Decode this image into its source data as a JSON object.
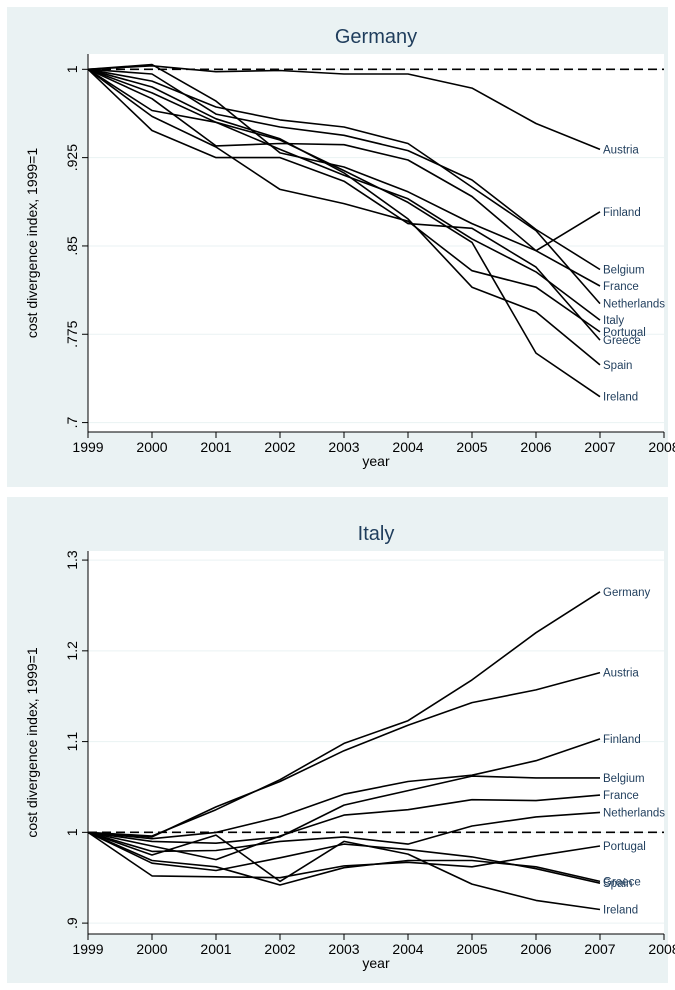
{
  "chart_data": [
    {
      "type": "line",
      "title": "Germany",
      "xlabel": "year",
      "ylabel": "cost divergence index, 1999=1",
      "x": [
        1999,
        2000,
        2001,
        2002,
        2003,
        2004,
        2005,
        2006,
        2007
      ],
      "xticks": [
        1999,
        2000,
        2001,
        2002,
        2003,
        2004,
        2005,
        2006,
        2007,
        2008
      ],
      "xlim": [
        1999,
        2008
      ],
      "yticks": [
        1,
        0.925,
        0.85,
        0.775,
        0.7
      ],
      "ytick_labels": [
        "1",
        ".925",
        ".85",
        ".775",
        ".7"
      ],
      "ylim": [
        0.692,
        1.013
      ],
      "reference_line": 1,
      "grid": true,
      "series": [
        {
          "name": "Austria",
          "values": [
            1,
            1.003,
            0.998,
            0.999,
            0.996,
            0.996,
            0.984,
            0.954,
            0.932
          ]
        },
        {
          "name": "Finland",
          "values": [
            1,
            1.004,
            0.973,
            0.929,
            0.917,
            0.896,
            0.869,
            0.846,
            0.879
          ]
        },
        {
          "name": "Belgium",
          "values": [
            1,
            0.996,
            0.962,
            0.951,
            0.944,
            0.931,
            0.906,
            0.864,
            0.83
          ]
        },
        {
          "name": "France",
          "values": [
            1,
            0.975,
            0.935,
            0.937,
            0.936,
            0.923,
            0.892,
            0.846,
            0.816
          ]
        },
        {
          "name": "Netherlands",
          "values": [
            1,
            0.99,
            0.968,
            0.957,
            0.951,
            0.937,
            0.9,
            0.863,
            0.801
          ]
        },
        {
          "name": "Italy",
          "values": [
            1,
            0.965,
            0.955,
            0.932,
            0.91,
            0.89,
            0.856,
            0.828,
            0.787
          ]
        },
        {
          "name": "Portugal",
          "values": [
            1,
            0.96,
            0.934,
            0.898,
            0.886,
            0.871,
            0.829,
            0.815,
            0.777
          ]
        },
        {
          "name": "Greece",
          "values": [
            1,
            0.948,
            0.925,
            0.925,
            0.905,
            0.869,
            0.865,
            0.832,
            0.77
          ]
        },
        {
          "name": "Spain",
          "values": [
            1,
            0.985,
            0.958,
            0.941,
            0.912,
            0.873,
            0.815,
            0.794,
            0.749
          ]
        },
        {
          "name": "Ireland",
          "values": [
            1,
            0.98,
            0.955,
            0.94,
            0.914,
            0.887,
            0.853,
            0.759,
            0.722
          ]
        }
      ]
    },
    {
      "type": "line",
      "title": "Italy",
      "xlabel": "year",
      "ylabel": "cost divergence index, 1999=1",
      "x": [
        1999,
        2000,
        2001,
        2002,
        2003,
        2004,
        2005,
        2006,
        2007
      ],
      "xticks": [
        1999,
        2000,
        2001,
        2002,
        2003,
        2004,
        2005,
        2006,
        2007,
        2008
      ],
      "xlim": [
        1999,
        2008
      ],
      "yticks": [
        0.9,
        1,
        1.1,
        1.2,
        1.3
      ],
      "ytick_labels": [
        ".9",
        "1",
        "1.1",
        "1.2",
        "1.3"
      ],
      "ylim": [
        0.888,
        1.31
      ],
      "reference_line": 1,
      "grid": true,
      "series": [
        {
          "name": "Germany",
          "values": [
            1,
            0.996,
            1.025,
            1.058,
            1.098,
            1.123,
            1.168,
            1.22,
            1.265
          ]
        },
        {
          "name": "Austria",
          "values": [
            1,
            0.995,
            1.028,
            1.056,
            1.09,
            1.118,
            1.143,
            1.157,
            1.176
          ]
        },
        {
          "name": "Finland",
          "values": [
            1,
            0.993,
            1.0,
            1.017,
            1.042,
            1.056,
            1.063,
            1.079,
            1.103
          ]
        },
        {
          "name": "Belgium",
          "values": [
            1,
            0.99,
            0.988,
            0.995,
            1.03,
            1.046,
            1.062,
            1.06,
            1.06
          ]
        },
        {
          "name": "France",
          "values": [
            1,
            0.985,
            0.97,
            0.996,
            1.019,
            1.025,
            1.036,
            1.035,
            1.041
          ]
        },
        {
          "name": "Netherlands",
          "values": [
            1,
            0.979,
            0.98,
            0.99,
            0.995,
            0.987,
            1.007,
            1.017,
            1.022
          ]
        },
        {
          "name": "Portugal",
          "values": [
            1,
            0.952,
            0.951,
            0.95,
            0.963,
            0.967,
            0.962,
            0.974,
            0.985
          ]
        },
        {
          "name": "Greece",
          "values": [
            1,
            0.969,
            0.962,
            0.942,
            0.961,
            0.969,
            0.969,
            0.962,
            0.946
          ]
        },
        {
          "name": "Spain",
          "values": [
            1,
            0.966,
            0.958,
            0.972,
            0.987,
            0.981,
            0.973,
            0.96,
            0.944
          ]
        },
        {
          "name": "Ireland",
          "values": [
            1,
            0.975,
            0.997,
            0.946,
            0.99,
            0.976,
            0.943,
            0.925,
            0.915
          ]
        }
      ]
    }
  ]
}
